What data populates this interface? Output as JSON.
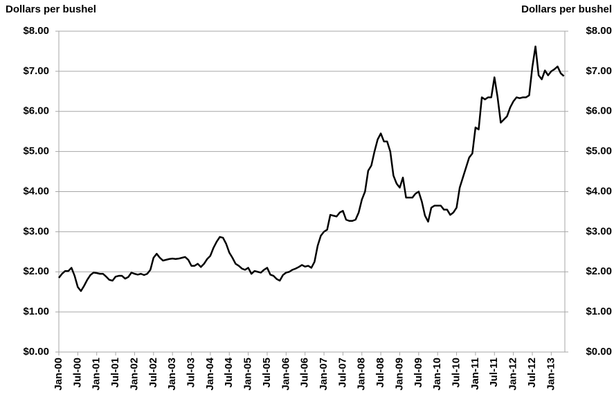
{
  "chart_data": {
    "type": "line",
    "ylabel": "Dollars per bushel",
    "y2label": "Dollars per bushel",
    "categories": [
      "Jan-00",
      null,
      null,
      null,
      null,
      null,
      "Jul-00",
      null,
      null,
      null,
      null,
      null,
      "Jan-01",
      null,
      null,
      null,
      null,
      null,
      "Jul-01",
      null,
      null,
      null,
      null,
      null,
      "Jan-02",
      null,
      null,
      null,
      null,
      null,
      "Jul-02",
      null,
      null,
      null,
      null,
      null,
      "Jan-03",
      null,
      null,
      null,
      null,
      null,
      "Jul-03",
      null,
      null,
      null,
      null,
      null,
      "Jan-04",
      null,
      null,
      null,
      null,
      null,
      "Jul-04",
      null,
      null,
      null,
      null,
      null,
      "Jan-05",
      null,
      null,
      null,
      null,
      null,
      "Jul-05",
      null,
      null,
      null,
      null,
      null,
      "Jan-06",
      null,
      null,
      null,
      null,
      null,
      "Jul-06",
      null,
      null,
      null,
      null,
      null,
      "Jan-07",
      null,
      null,
      null,
      null,
      null,
      "Jul-07",
      null,
      null,
      null,
      null,
      null,
      "Jan-08",
      null,
      null,
      null,
      null,
      null,
      "Jul-08",
      null,
      null,
      null,
      null,
      null,
      "Jan-09",
      null,
      null,
      null,
      null,
      null,
      "Jul-09",
      null,
      null,
      null,
      null,
      null,
      "Jan-10",
      null,
      null,
      null,
      null,
      null,
      "Jul-10",
      null,
      null,
      null,
      null,
      null,
      "Jan-11",
      null,
      null,
      null,
      null,
      null,
      "Jul-11",
      null,
      null,
      null,
      null,
      null,
      "Jan-12",
      null,
      null,
      null,
      null,
      null,
      "Jul-12",
      null,
      null,
      null,
      null,
      null,
      "Jan-13",
      null,
      null,
      null,
      null
    ],
    "values": [
      1.85,
      1.95,
      2.02,
      2.02,
      2.1,
      1.9,
      1.62,
      1.52,
      1.65,
      1.8,
      1.92,
      1.98,
      1.97,
      1.95,
      1.95,
      1.88,
      1.8,
      1.78,
      1.88,
      1.9,
      1.9,
      1.83,
      1.87,
      1.98,
      1.95,
      1.93,
      1.95,
      1.92,
      1.95,
      2.05,
      2.35,
      2.45,
      2.35,
      2.28,
      2.3,
      2.32,
      2.33,
      2.32,
      2.33,
      2.35,
      2.37,
      2.3,
      2.15,
      2.15,
      2.2,
      2.12,
      2.2,
      2.32,
      2.4,
      2.6,
      2.75,
      2.87,
      2.85,
      2.7,
      2.48,
      2.35,
      2.2,
      2.15,
      2.08,
      2.05,
      2.1,
      1.95,
      2.02,
      2.0,
      1.98,
      2.05,
      2.1,
      1.93,
      1.9,
      1.82,
      1.78,
      1.92,
      1.98,
      2.0,
      2.05,
      2.08,
      2.12,
      2.17,
      2.13,
      2.15,
      2.1,
      2.25,
      2.65,
      2.9,
      3.0,
      3.05,
      3.42,
      3.4,
      3.38,
      3.48,
      3.52,
      3.3,
      3.27,
      3.27,
      3.3,
      3.48,
      3.8,
      4.0,
      4.52,
      4.65,
      5.0,
      5.3,
      5.45,
      5.25,
      5.25,
      5.0,
      4.4,
      4.2,
      4.1,
      4.35,
      3.85,
      3.85,
      3.85,
      3.95,
      4.0,
      3.75,
      3.4,
      3.25,
      3.6,
      3.65,
      3.65,
      3.65,
      3.55,
      3.55,
      3.42,
      3.48,
      3.6,
      4.1,
      4.35,
      4.6,
      4.85,
      4.95,
      5.6,
      5.55,
      6.35,
      6.3,
      6.35,
      6.35,
      6.85,
      6.35,
      5.72,
      5.8,
      5.88,
      6.1,
      6.25,
      6.35,
      6.33,
      6.35,
      6.35,
      6.4,
      7.1,
      7.62,
      6.9,
      6.8,
      7.02,
      6.9,
      7.0,
      7.05,
      7.12,
      6.95,
      6.88
    ],
    "color": "#000000",
    "ylim": [
      0,
      8
    ],
    "yticks": [
      {
        "value": 0,
        "label": "$0.00"
      },
      {
        "value": 1,
        "label": "$1.00"
      },
      {
        "value": 2,
        "label": "$2.00"
      },
      {
        "value": 3,
        "label": "$3.00"
      },
      {
        "value": 4,
        "label": "$4.00"
      },
      {
        "value": 5,
        "label": "$5.00"
      },
      {
        "value": 6,
        "label": "$6.00"
      },
      {
        "value": 7,
        "label": "$7.00"
      },
      {
        "value": 8,
        "label": "$8.00"
      }
    ],
    "y2lim": [
      0,
      8
    ],
    "y2ticks": [
      {
        "value": 0,
        "label": "$0.00"
      },
      {
        "value": 1,
        "label": "$1.00"
      },
      {
        "value": 2,
        "label": "$2.00"
      },
      {
        "value": 3,
        "label": "$3.00"
      },
      {
        "value": 4,
        "label": "$4.00"
      },
      {
        "value": 5,
        "label": "$5.00"
      },
      {
        "value": 6,
        "label": "$6.00"
      },
      {
        "value": 7,
        "label": "$7.00"
      },
      {
        "value": 8,
        "label": "$8.00"
      }
    ],
    "grid": true
  }
}
